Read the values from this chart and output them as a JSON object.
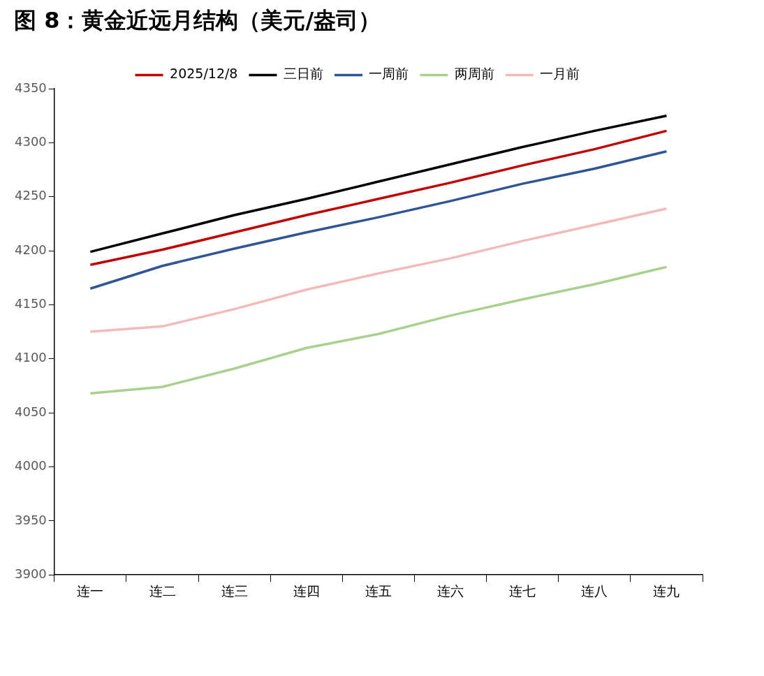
{
  "chart_data": {
    "type": "line",
    "title": "图 8：黄金近远月结构（美元/盎司）",
    "categories": [
      "连一",
      "连二",
      "连三",
      "连四",
      "连五",
      "连六",
      "连七",
      "连八",
      "连九"
    ],
    "series": [
      {
        "name": "2025/12/8",
        "color": "#c00000",
        "values": [
          4187,
          4201,
          4217,
          4233,
          4248,
          4263,
          4279,
          4294,
          4311
        ]
      },
      {
        "name": "三日前",
        "color": "#000000",
        "values": [
          4199,
          4216,
          4233,
          4248,
          4264,
          4280,
          4296,
          4311,
          4325
        ]
      },
      {
        "name": "一周前",
        "color": "#2f5597",
        "values": [
          4165,
          4186,
          4202,
          4217,
          4231,
          4246,
          4262,
          4276,
          4292
        ]
      },
      {
        "name": "两周前",
        "color": "#a9d18e",
        "values": [
          4068,
          4074,
          4091,
          4110,
          4123,
          4140,
          4155,
          4169,
          4185
        ]
      },
      {
        "name": "一月前",
        "color": "#f4b9b9",
        "values": [
          4125,
          4130,
          4146,
          4164,
          4179,
          4193,
          4209,
          4224,
          4239
        ]
      }
    ],
    "ylim": [
      3900,
      4350
    ],
    "yticks": [
      3900,
      3950,
      4000,
      4050,
      4100,
      4150,
      4200,
      4250,
      4300,
      4350
    ],
    "grid": false,
    "legend": "top",
    "marker": "none",
    "line_style": "solid"
  }
}
